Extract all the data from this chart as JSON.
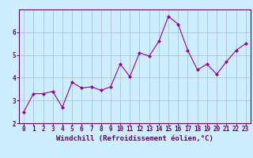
{
  "x": [
    0,
    1,
    2,
    3,
    4,
    5,
    6,
    7,
    8,
    9,
    10,
    11,
    12,
    13,
    14,
    15,
    16,
    17,
    18,
    19,
    20,
    21,
    22,
    23
  ],
  "y": [
    2.5,
    3.3,
    3.3,
    3.4,
    2.7,
    3.8,
    3.55,
    3.6,
    3.45,
    3.6,
    4.6,
    4.05,
    5.1,
    4.95,
    5.6,
    6.7,
    6.35,
    5.2,
    4.35,
    4.6,
    4.15,
    4.7,
    5.2,
    5.5
  ],
  "line_color": "#990099",
  "marker": "D",
  "marker_size": 2,
  "bg_color": "#cceeff",
  "grid_color": "#aabbcc",
  "axis_color": "#660066",
  "border_color": "#660066",
  "xlabel": "Windchill (Refroidissement éolien,°C)",
  "ylim": [
    2.0,
    7.0
  ],
  "xlim": [
    -0.5,
    23.5
  ],
  "yticks": [
    2,
    3,
    4,
    5,
    6
  ],
  "xticks": [
    0,
    1,
    2,
    3,
    4,
    5,
    6,
    7,
    8,
    9,
    10,
    11,
    12,
    13,
    14,
    15,
    16,
    17,
    18,
    19,
    20,
    21,
    22,
    23
  ],
  "label_fontsize": 6.5,
  "tick_fontsize": 5.5
}
